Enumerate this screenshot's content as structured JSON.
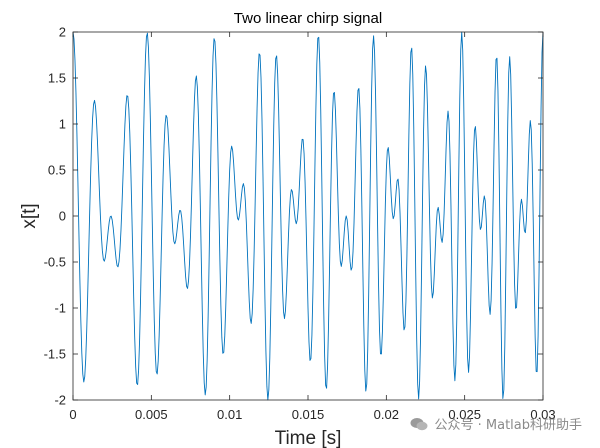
{
  "chart_data": {
    "type": "line",
    "title": "Two linear chirp signal",
    "xlabel": "Time [s]",
    "ylabel": "x[t]",
    "xlim": [
      0,
      0.03
    ],
    "ylim": [
      -2,
      2
    ],
    "xticks": [
      0,
      0.005,
      0.01,
      0.015,
      0.02,
      0.025,
      0.03
    ],
    "xtick_labels": [
      "0",
      "0.005",
      "0.01",
      "0.015",
      "0.02",
      "0.025",
      "0.03"
    ],
    "yticks": [
      -2,
      -1.5,
      -1,
      -0.5,
      0,
      0.5,
      1,
      1.5,
      2
    ],
    "ytick_labels": [
      "-2",
      "-1.5",
      "-1",
      "-0.5",
      "0",
      "0.5",
      "1",
      "1.5",
      "2"
    ],
    "grid": false,
    "series": [
      {
        "color": "#0072BD",
        "signal": "sum of two linear chirps",
        "components": [
          {
            "f0_hz": 600,
            "f1_hz": 1000,
            "t1_s": 0.03,
            "amplitude": 1
          },
          {
            "f0_hz": 800,
            "f1_hz": 1400,
            "t1_s": 0.03,
            "amplitude": 1
          }
        ],
        "sample_rate_hz": 16000
      }
    ]
  },
  "watermark": {
    "text": "公众号 · Matlab科研助手"
  }
}
